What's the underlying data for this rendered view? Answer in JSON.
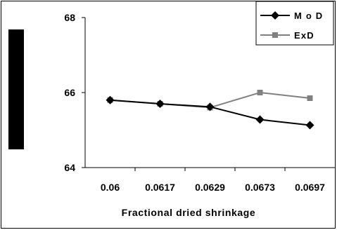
{
  "chart_data": {
    "type": "line",
    "categories": [
      "0.06",
      "0.0617",
      "0.0629",
      "0.0673",
      "0.0697"
    ],
    "series": [
      {
        "name": "M o D",
        "values": [
          65.8,
          65.7,
          65.62,
          65.28,
          65.13
        ],
        "color": "#000000",
        "marker": "diamond"
      },
      {
        "name": "ExD",
        "values": [
          65.8,
          65.7,
          65.6,
          66.0,
          65.85
        ],
        "color": "#808080",
        "marker": "square"
      }
    ],
    "xlabel": "Fractional dried shrinkage",
    "ylabel": "",
    "ylim": [
      64,
      68
    ],
    "yticks": [
      64,
      66,
      68
    ],
    "legend_position": "top-right",
    "grid": false
  }
}
